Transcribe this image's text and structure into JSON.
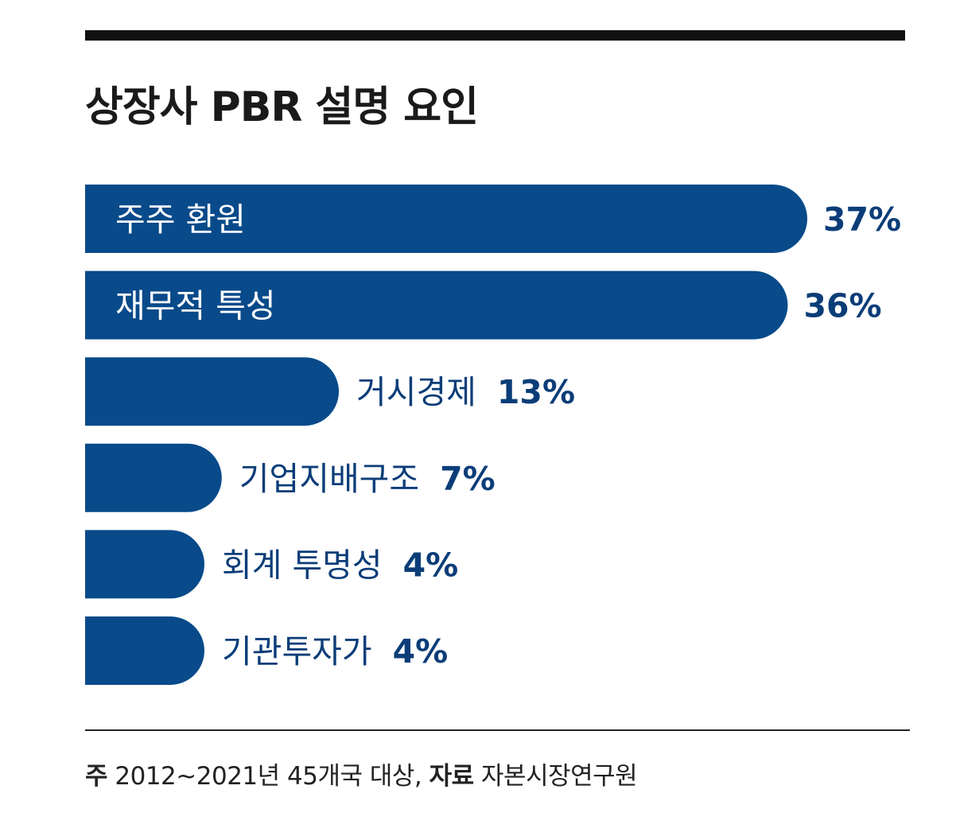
{
  "chart_data": {
    "type": "bar",
    "orientation": "horizontal",
    "title": "상장사 PBR 설명 요인",
    "categories": [
      "주주 환원",
      "재무적 특성",
      "거시경제",
      "기업지배구조",
      "회계 투명성",
      "기관투자가"
    ],
    "values": [
      37,
      36,
      13,
      7,
      4,
      4
    ],
    "value_labels": [
      "37%",
      "36%",
      "13%",
      "7%",
      "4%",
      "4%"
    ],
    "unit": "%",
    "xlim": [
      0,
      37
    ],
    "grid": false,
    "legend": "none"
  },
  "footnote": {
    "note_key": "주",
    "note_text": "2012~2021년 45개국 대상,",
    "source_key": "자료",
    "source_text": "자본시장연구원"
  },
  "colors": {
    "bar": "#084a8a",
    "label_inside": "#ffffff",
    "label_outside": "#0b3d78",
    "title": "#1a1a1a"
  }
}
